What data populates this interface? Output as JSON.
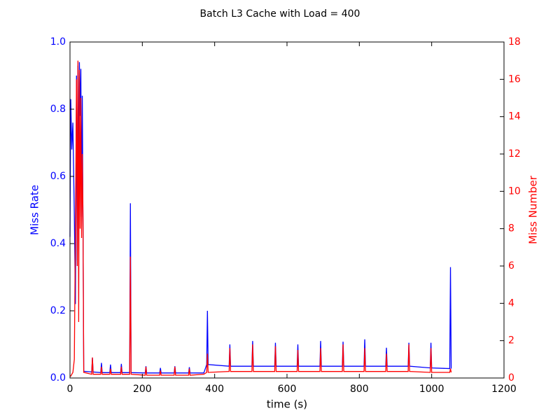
{
  "chart_data": {
    "type": "line",
    "title": "Batch L3 Cache with Load = 400",
    "x_label": "time (s)",
    "y_label": "Miss Rate",
    "y2_label": "Miss Number",
    "x": [
      0,
      2,
      5,
      8,
      12,
      15,
      18,
      20,
      22,
      24,
      26,
      28,
      30,
      32,
      34,
      36,
      38,
      60,
      62,
      64,
      85,
      87,
      89,
      110,
      112,
      114,
      140,
      142,
      144,
      165,
      167,
      169,
      208,
      210,
      212,
      248,
      250,
      252,
      288,
      290,
      292,
      328,
      330,
      332,
      370,
      378,
      380,
      382,
      440,
      442,
      444,
      503,
      505,
      507,
      566,
      568,
      570,
      628,
      630,
      632,
      691,
      693,
      695,
      753,
      755,
      757,
      813,
      815,
      817,
      873,
      875,
      877,
      935,
      937,
      939,
      996,
      998,
      1000,
      1050,
      1052,
      1054
    ],
    "series": [
      {
        "color": "#0000ff",
        "axis": "y",
        "values": [
          0.42,
          0.83,
          0.68,
          0.76,
          0.48,
          0.22,
          0.9,
          0.35,
          0.93,
          0.55,
          0.94,
          0.78,
          0.92,
          0.48,
          0.84,
          0.45,
          0.02,
          0.018,
          0.06,
          0.018,
          0.016,
          0.045,
          0.016,
          0.016,
          0.04,
          0.016,
          0.016,
          0.042,
          0.016,
          0.016,
          0.52,
          0.016,
          0.015,
          0.035,
          0.015,
          0.015,
          0.03,
          0.015,
          0.015,
          0.035,
          0.015,
          0.015,
          0.032,
          0.015,
          0.015,
          0.04,
          0.2,
          0.04,
          0.035,
          0.1,
          0.035,
          0.035,
          0.11,
          0.035,
          0.035,
          0.105,
          0.035,
          0.035,
          0.1,
          0.035,
          0.035,
          0.11,
          0.035,
          0.035,
          0.108,
          0.035,
          0.035,
          0.115,
          0.035,
          0.035,
          0.09,
          0.035,
          0.035,
          0.105,
          0.035,
          0.03,
          0.105,
          0.03,
          0.028,
          0.33,
          0.028
        ]
      },
      {
        "color": "#ff0000",
        "axis": "y2",
        "values": [
          0.1,
          0.1,
          0.2,
          0.3,
          1.0,
          8,
          16,
          6,
          17,
          3,
          16.5,
          8,
          15,
          7.5,
          12,
          8.5,
          0.3,
          0.2,
          1.1,
          0.2,
          0.2,
          0.6,
          0.2,
          0.2,
          0.5,
          0.2,
          0.2,
          0.6,
          0.2,
          0.2,
          6.5,
          0.2,
          0.15,
          0.6,
          0.15,
          0.15,
          0.4,
          0.15,
          0.15,
          0.6,
          0.15,
          0.15,
          0.5,
          0.15,
          0.2,
          0.3,
          1.3,
          0.3,
          0.35,
          1.6,
          0.35,
          0.35,
          1.8,
          0.35,
          0.35,
          1.7,
          0.35,
          0.35,
          1.5,
          0.35,
          0.35,
          1.6,
          0.35,
          0.35,
          1.8,
          0.35,
          0.35,
          1.6,
          0.35,
          0.35,
          1.3,
          0.35,
          0.35,
          1.8,
          0.35,
          0.3,
          1.6,
          0.3,
          0.3,
          0.5,
          0.3
        ]
      }
    ],
    "xlim": [
      0,
      1200
    ],
    "xticks": [
      0,
      200,
      400,
      600,
      800,
      1000,
      1200
    ],
    "ylim": [
      0,
      1
    ],
    "yticks": [
      {
        "value": 0,
        "label": "0.0"
      },
      0.2,
      0.4,
      0.6,
      0.8,
      {
        "value": 1,
        "label": "1.0"
      }
    ],
    "y2lim": [
      0,
      18
    ],
    "y2ticks": [
      0,
      2,
      4,
      6,
      8,
      10,
      12,
      14,
      16,
      18
    ]
  }
}
